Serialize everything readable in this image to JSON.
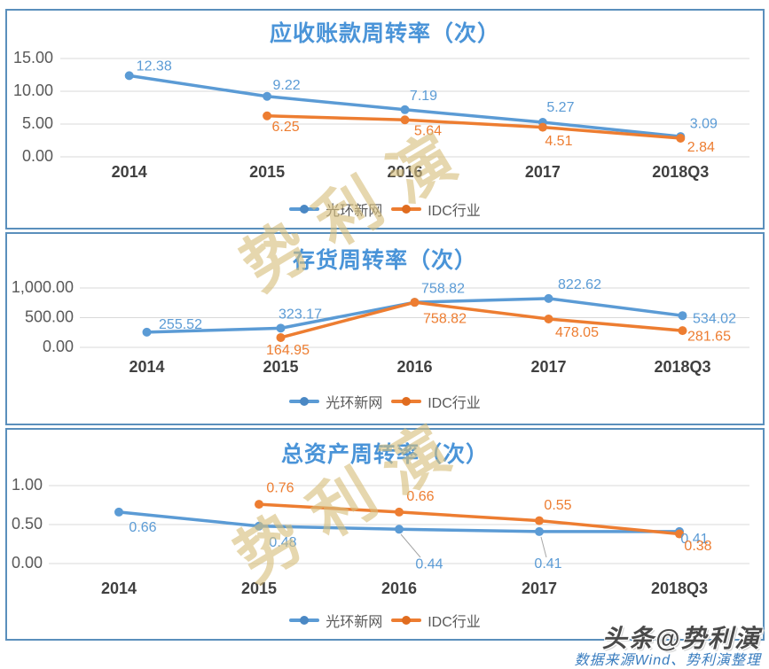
{
  "page": {
    "watermark_text": "势利演",
    "branding": {
      "toutiao_badge": "头条@势利演",
      "source_note": "数据来源Wind、势利演整理"
    }
  },
  "colors": {
    "series_blue": "#5b9bd5",
    "series_orange": "#ed7d31",
    "title_blue": "#4a94d8",
    "grid_gray": "#d9d9d9",
    "tick_gray": "#595959",
    "xlabel_gray": "#404040",
    "panel_border": "#5a8fbc",
    "watermark_tan": "#d6be7d"
  },
  "chart_data": [
    {
      "type": "line",
      "title": "应收账款周转率（次）",
      "categories": [
        "2014",
        "2015",
        "2016",
        "2017",
        "2018Q3"
      ],
      "series": [
        {
          "name": "光环新网",
          "color": "#5b9bd5",
          "values": [
            12.38,
            9.22,
            7.19,
            5.27,
            3.09
          ]
        },
        {
          "name": "IDC行业",
          "color": "#ed7d31",
          "values": [
            null,
            6.25,
            5.64,
            4.51,
            2.84
          ]
        }
      ],
      "y_ticks": [
        "15.00",
        "10.00",
        "5.00",
        "0.00"
      ],
      "ylim": [
        0,
        15
      ],
      "grid": true,
      "legend_position": "bottom"
    },
    {
      "type": "line",
      "title": "存货周转率（次）",
      "categories": [
        "2014",
        "2015",
        "2016",
        "2017",
        "2018Q3"
      ],
      "series": [
        {
          "name": "光环新网",
          "color": "#5b9bd5",
          "values": [
            255.52,
            323.17,
            758.82,
            822.62,
            534.02
          ]
        },
        {
          "name": "IDC行业",
          "color": "#ed7d31",
          "values": [
            null,
            164.95,
            758.82,
            478.05,
            281.65
          ]
        }
      ],
      "y_ticks": [
        "1,000.00",
        "500.00",
        "0.00"
      ],
      "ylim": [
        0,
        1000
      ],
      "grid": true,
      "legend_position": "bottom"
    },
    {
      "type": "line",
      "title": "总资产周转率（次）",
      "categories": [
        "2014",
        "2015",
        "2016",
        "2017",
        "2018Q3"
      ],
      "series": [
        {
          "name": "光环新网",
          "color": "#5b9bd5",
          "values": [
            0.66,
            0.48,
            0.44,
            0.41,
            0.41
          ]
        },
        {
          "name": "IDC行业",
          "color": "#ed7d31",
          "values": [
            null,
            0.76,
            0.66,
            0.55,
            0.38
          ]
        }
      ],
      "y_ticks": [
        "1.00",
        "0.50",
        "0.00"
      ],
      "ylim": [
        0,
        1
      ],
      "grid": true,
      "legend_position": "bottom"
    }
  ]
}
